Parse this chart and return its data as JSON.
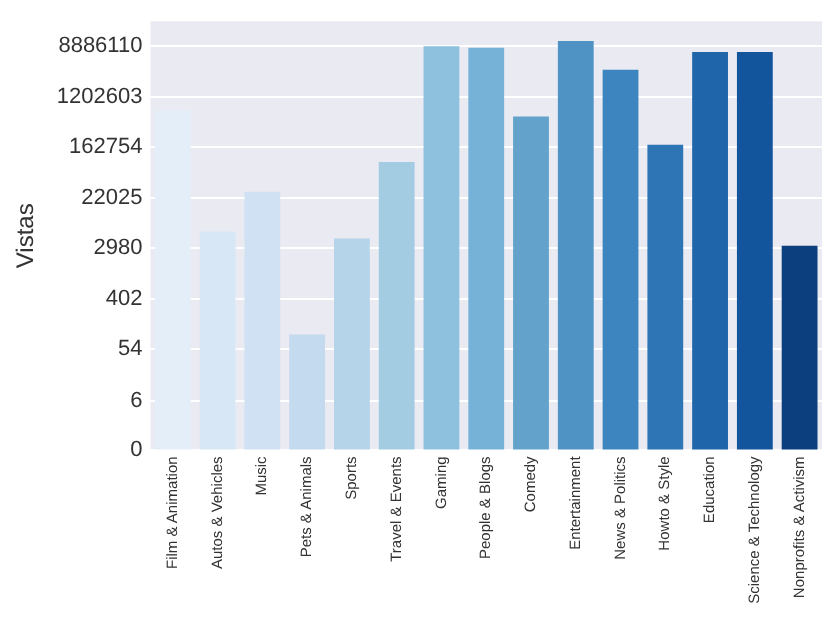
{
  "chart_data": {
    "type": "bar",
    "ylabel": "Vistas",
    "categories": [
      "Film & Animation",
      "Autos & Vehicles",
      "Music",
      "Pets & Animals",
      "Sports",
      "Travel & Events",
      "Gaming",
      "People & Blogs",
      "Comedy",
      "Entertainment",
      "News & Politics",
      "Howto & Style",
      "Education",
      "Science & Technology",
      "Nonprofits & Activism"
    ],
    "values": [
      700000,
      5800,
      28000,
      97,
      4400,
      91000,
      8900000,
      8400000,
      550000,
      11000000,
      3500000,
      180000,
      7100000,
      7100000,
      3300
    ],
    "colors": [
      "#e3eef8",
      "#d8e7f5",
      "#cfe1f2",
      "#c4daee",
      "#b5d4e9",
      "#a3cce3",
      "#8dc1dd",
      "#76b1d7",
      "#62a2cb",
      "#4f93c4",
      "#3d85be",
      "#2e75b6",
      "#1f65aa",
      "#13559c",
      "#0b3f7d"
    ],
    "log": true,
    "ylim": [
      0,
      24000000
    ],
    "yticks": [
      0,
      6,
      54,
      402,
      2980,
      22025,
      162754,
      1202603,
      8886110
    ],
    "grid": true
  }
}
